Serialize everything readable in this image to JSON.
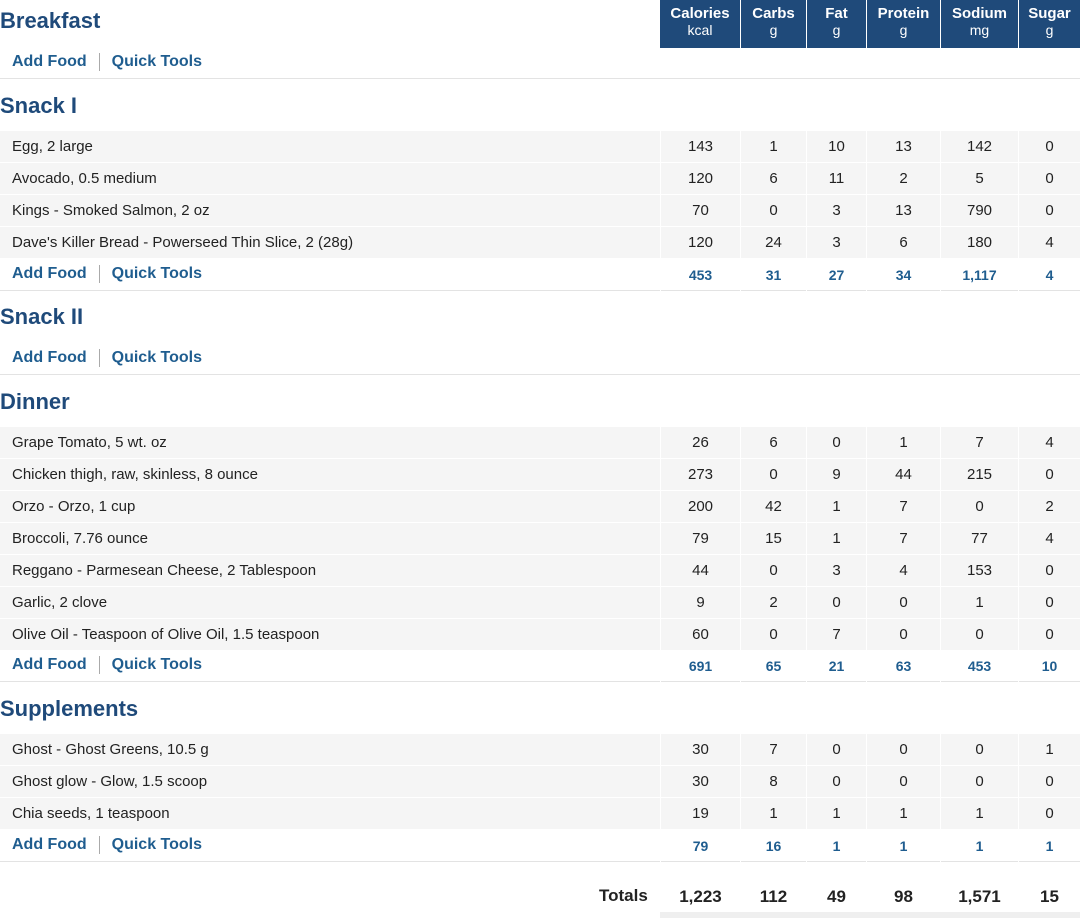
{
  "columns": [
    {
      "label": "Calories",
      "unit": "kcal"
    },
    {
      "label": "Carbs",
      "unit": "g"
    },
    {
      "label": "Fat",
      "unit": "g"
    },
    {
      "label": "Protein",
      "unit": "g"
    },
    {
      "label": "Sodium",
      "unit": "mg"
    },
    {
      "label": "Sugar",
      "unit": "g"
    }
  ],
  "add_food_label": "Add Food",
  "quick_tools_label": "Quick Tools",
  "meals": [
    {
      "name": "Breakfast",
      "items": [],
      "totals": null
    },
    {
      "name": "Snack I",
      "items": [
        {
          "name": "Egg, 2 large",
          "values": [
            "143",
            "1",
            "10",
            "13",
            "142",
            "0"
          ]
        },
        {
          "name": "Avocado, 0.5 medium",
          "values": [
            "120",
            "6",
            "11",
            "2",
            "5",
            "0"
          ]
        },
        {
          "name": "Kings - Smoked Salmon, 2 oz",
          "values": [
            "70",
            "0",
            "3",
            "13",
            "790",
            "0"
          ]
        },
        {
          "name": "Dave's Killer Bread - Powerseed Thin Slice, 2 (28g)",
          "values": [
            "120",
            "24",
            "3",
            "6",
            "180",
            "4"
          ]
        }
      ],
      "totals": [
        "453",
        "31",
        "27",
        "34",
        "1,117",
        "4"
      ]
    },
    {
      "name": "Snack II",
      "items": [],
      "totals": null
    },
    {
      "name": "Dinner",
      "items": [
        {
          "name": "Grape Tomato, 5 wt. oz",
          "values": [
            "26",
            "6",
            "0",
            "1",
            "7",
            "4"
          ]
        },
        {
          "name": "Chicken thigh, raw, skinless, 8 ounce",
          "values": [
            "273",
            "0",
            "9",
            "44",
            "215",
            "0"
          ]
        },
        {
          "name": "Orzo - Orzo, 1 cup",
          "values": [
            "200",
            "42",
            "1",
            "7",
            "0",
            "2"
          ]
        },
        {
          "name": "Broccoli, 7.76 ounce",
          "values": [
            "79",
            "15",
            "1",
            "7",
            "77",
            "4"
          ]
        },
        {
          "name": "Reggano - Parmesean Cheese, 2 Tablespoon",
          "values": [
            "44",
            "0",
            "3",
            "4",
            "153",
            "0"
          ]
        },
        {
          "name": "Garlic, 2 clove",
          "values": [
            "9",
            "2",
            "0",
            "0",
            "1",
            "0"
          ]
        },
        {
          "name": "Olive Oil - Teaspoon of Olive Oil, 1.5 teaspoon",
          "values": [
            "60",
            "0",
            "7",
            "0",
            "0",
            "0"
          ]
        }
      ],
      "totals": [
        "691",
        "65",
        "21",
        "63",
        "453",
        "10"
      ]
    },
    {
      "name": "Supplements",
      "items": [
        {
          "name": "Ghost - Ghost Greens, 10.5 g",
          "values": [
            "30",
            "7",
            "0",
            "0",
            "0",
            "1"
          ]
        },
        {
          "name": "Ghost glow - Glow, 1.5 scoop",
          "values": [
            "30",
            "8",
            "0",
            "0",
            "0",
            "0"
          ]
        },
        {
          "name": "Chia seeds, 1 teaspoon",
          "values": [
            "19",
            "1",
            "1",
            "1",
            "1",
            "0"
          ]
        }
      ],
      "totals": [
        "79",
        "16",
        "1",
        "1",
        "1",
        "1"
      ]
    }
  ],
  "grand_totals": {
    "label": "Totals",
    "values": [
      "1,223",
      "112",
      "49",
      "98",
      "1,571",
      "15"
    ]
  },
  "colors": {
    "header_bg": "#1f4a7a",
    "accent": "#1f5d8f"
  }
}
